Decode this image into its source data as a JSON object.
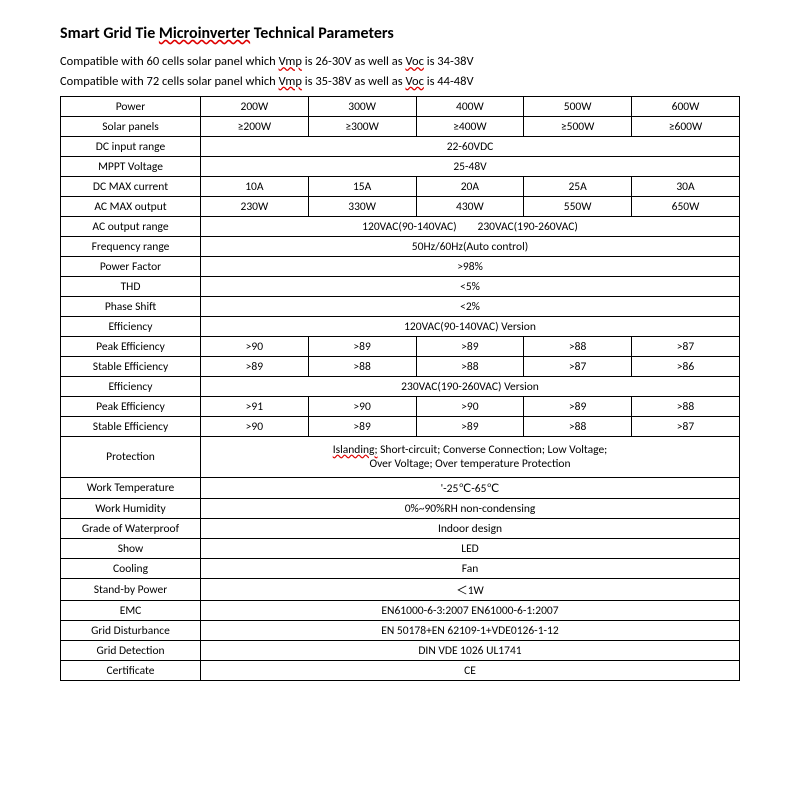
{
  "title": "Smart Grid Tie Microinverter Technical Parameters",
  "title_underlined": "Microinverter",
  "intro1_a": "Compatible with 60 cells solar panel which ",
  "intro1_b": "Vmp",
  "intro1_c": " is 26-30V as well as ",
  "intro1_d": "Voc",
  "intro1_e": " is 34-38V",
  "intro2_a": "Compatible with 72 cells solar panel which ",
  "intro2_b": "Vmp",
  "intro2_c": " is 35-38V as well as ",
  "intro2_d": "Voc",
  "intro2_e": " is 44-48V",
  "rows": {
    "power": {
      "label": "Power",
      "v": [
        "200W",
        "300W",
        "400W",
        "500W",
        "600W"
      ]
    },
    "solar": {
      "label": "Solar panels",
      "v": [
        "≥200W",
        "≥300W",
        "≥400W",
        "≥500W",
        "≥600W"
      ]
    },
    "dcin": {
      "label": "DC input range",
      "span": "22-60VDC"
    },
    "mppt": {
      "label": "MPPT Voltage",
      "span": "25-48V"
    },
    "dcmax": {
      "label": "DC MAX current",
      "v": [
        "10A",
        "15A",
        "20A",
        "25A",
        "30A"
      ]
    },
    "acmax": {
      "label": "AC MAX output",
      "v": [
        "230W",
        "330W",
        "430W",
        "550W",
        "650W"
      ]
    },
    "acout": {
      "label": "AC output range",
      "a": "120VAC(90-140VAC)",
      "b": "230VAC(190-260VAC)"
    },
    "freq": {
      "label": "Frequency range",
      "span": "50Hz/60Hz(Auto control)"
    },
    "pf": {
      "label": "Power Factor",
      "span": ">98%"
    },
    "thd": {
      "label": "THD",
      "span": "<5%"
    },
    "phase": {
      "label": "Phase Shift",
      "span": "<2%"
    },
    "eff1": {
      "label": "Efficiency",
      "span": "120VAC(90-140VAC) Version"
    },
    "peak1": {
      "label": "Peak Efficiency",
      "v": [
        ">90",
        ">89",
        ">89",
        ">88",
        ">87"
      ]
    },
    "stable1": {
      "label": "Stable Efficiency",
      "v": [
        ">89",
        ">88",
        ">88",
        ">87",
        ">86"
      ]
    },
    "eff2": {
      "label": "Efficiency",
      "span": "230VAC(190-260VAC) Version"
    },
    "peak2": {
      "label": "Peak Efficiency",
      "v": [
        ">91",
        ">90",
        ">90",
        ">89",
        ">88"
      ]
    },
    "stable2": {
      "label": "Stable Efficiency",
      "v": [
        ">90",
        ">89",
        ">89",
        ">88",
        ">87"
      ]
    },
    "prot": {
      "label": "Protection",
      "a": "Islanding;",
      "b": " Short-circuit; Converse Connection; Low Voltage;",
      "c": "Over Voltage; Over temperature Protection"
    },
    "temp": {
      "label": "Work Temperature",
      "span": "'-25℃-65℃"
    },
    "hum": {
      "label": "Work Humidity",
      "span": "0%~90%RH non-condensing"
    },
    "wp": {
      "label": "Grade of Waterproof",
      "span": "Indoor design"
    },
    "show": {
      "label": "Show",
      "span": "LED"
    },
    "cool": {
      "label": "Cooling",
      "span": "Fan"
    },
    "standby": {
      "label": "Stand-by Power",
      "span": "＜1W"
    },
    "emc": {
      "label": "EMC",
      "span": "EN61000-6-3:2007 EN61000-6-1:2007"
    },
    "dist": {
      "label": "Grid Disturbance",
      "span": "EN 50178+EN 62109-1+VDE0126-1-12"
    },
    "det": {
      "label": "Grid Detection",
      "span": "DIN VDE 1026 UL1741"
    },
    "cert": {
      "label": "Certificate",
      "span": "CE"
    }
  }
}
